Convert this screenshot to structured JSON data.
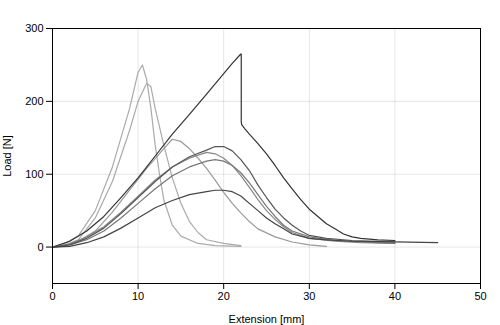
{
  "chart_data": {
    "type": "line",
    "xlabel": "Extension [mm]",
    "ylabel": "Load [N]",
    "xlim": [
      0,
      50
    ],
    "ylim": [
      -50,
      300
    ],
    "xticks": [
      0,
      10,
      20,
      30,
      40,
      50
    ],
    "yticks": [
      0,
      100,
      200,
      300
    ],
    "grid": true,
    "series": [
      {
        "color": "#aaaaaa",
        "x": [
          0,
          1,
          3,
          5,
          7,
          9,
          10,
          10.5,
          11,
          11.5,
          12,
          12.5,
          13,
          14,
          15,
          17,
          19,
          22
        ],
        "values": [
          0,
          2,
          15,
          50,
          110,
          190,
          240,
          250,
          230,
          190,
          140,
          100,
          65,
          30,
          15,
          5,
          2,
          1
        ]
      },
      {
        "color": "#aaaaaa",
        "x": [
          0,
          1,
          3,
          5,
          7,
          9,
          10,
          11,
          11.5,
          12,
          13,
          14,
          15,
          16,
          17,
          18,
          20,
          22
        ],
        "values": [
          0,
          1,
          10,
          40,
          90,
          160,
          200,
          225,
          220,
          190,
          140,
          95,
          60,
          35,
          20,
          10,
          5,
          2
        ]
      },
      {
        "color": "#999999",
        "x": [
          0,
          1,
          3,
          5,
          7,
          9,
          11,
          13,
          14,
          15,
          16,
          17,
          18,
          19,
          20,
          21,
          22,
          23,
          24,
          26,
          28,
          30,
          32
        ],
        "values": [
          0,
          1,
          8,
          22,
          48,
          78,
          108,
          135,
          148,
          145,
          135,
          122,
          108,
          92,
          75,
          60,
          47,
          35,
          25,
          14,
          7,
          3,
          1
        ]
      },
      {
        "color": "#888888",
        "x": [
          0,
          2,
          4,
          6,
          8,
          10,
          12,
          14,
          16,
          18,
          19,
          20,
          21,
          22,
          23,
          24,
          25,
          26,
          27,
          28,
          30,
          33,
          36,
          40
        ],
        "values": [
          0,
          4,
          14,
          28,
          48,
          70,
          92,
          110,
          122,
          130,
          128,
          122,
          112,
          98,
          82,
          65,
          50,
          38,
          28,
          20,
          12,
          8,
          6,
          5
        ]
      },
      {
        "color": "#777777",
        "x": [
          0,
          2,
          4,
          6,
          8,
          10,
          12,
          14,
          16,
          18,
          19,
          20,
          21,
          22,
          23,
          24,
          25,
          26,
          27,
          28,
          30,
          33,
          36,
          40
        ],
        "values": [
          0,
          3,
          10,
          22,
          40,
          60,
          80,
          98,
          110,
          118,
          120,
          118,
          112,
          102,
          88,
          72,
          56,
          42,
          30,
          22,
          14,
          9,
          7,
          5
        ]
      },
      {
        "color": "#333333",
        "x": [
          0,
          2,
          4,
          6,
          8,
          10,
          12,
          14,
          16,
          18,
          20,
          21,
          22,
          22.05,
          22.05,
          22.1,
          22.5,
          23,
          24,
          25,
          26,
          27,
          28,
          29,
          30,
          31,
          32,
          33,
          34,
          35,
          36,
          38,
          40
        ],
        "values": [
          0,
          8,
          22,
          42,
          68,
          95,
          125,
          155,
          182,
          210,
          238,
          252,
          265,
          265,
          172,
          168,
          162,
          155,
          142,
          128,
          112,
          95,
          80,
          65,
          52,
          42,
          32,
          25,
          18,
          14,
          12,
          10,
          9
        ]
      },
      {
        "color": "#555555",
        "x": [
          0,
          2,
          4,
          6,
          8,
          10,
          12,
          14,
          16,
          18,
          19,
          20,
          21,
          22,
          23,
          24,
          25,
          26,
          27,
          28,
          29,
          30,
          32,
          35,
          40
        ],
        "values": [
          0,
          3,
          12,
          26,
          46,
          68,
          90,
          110,
          124,
          133,
          138,
          138,
          132,
          120,
          105,
          85,
          68,
          52,
          40,
          30,
          22,
          16,
          12,
          9,
          7
        ]
      },
      {
        "color": "#444444",
        "x": [
          0,
          2,
          4,
          6,
          8,
          10,
          12,
          14,
          16,
          18,
          19,
          20,
          21,
          22,
          23,
          24,
          25,
          26,
          27,
          28,
          30,
          32,
          35,
          40,
          45
        ],
        "values": [
          0,
          1,
          6,
          14,
          26,
          40,
          54,
          64,
          72,
          76,
          78,
          78,
          76,
          70,
          60,
          50,
          40,
          32,
          25,
          18,
          12,
          10,
          8,
          7,
          6
        ]
      }
    ]
  }
}
